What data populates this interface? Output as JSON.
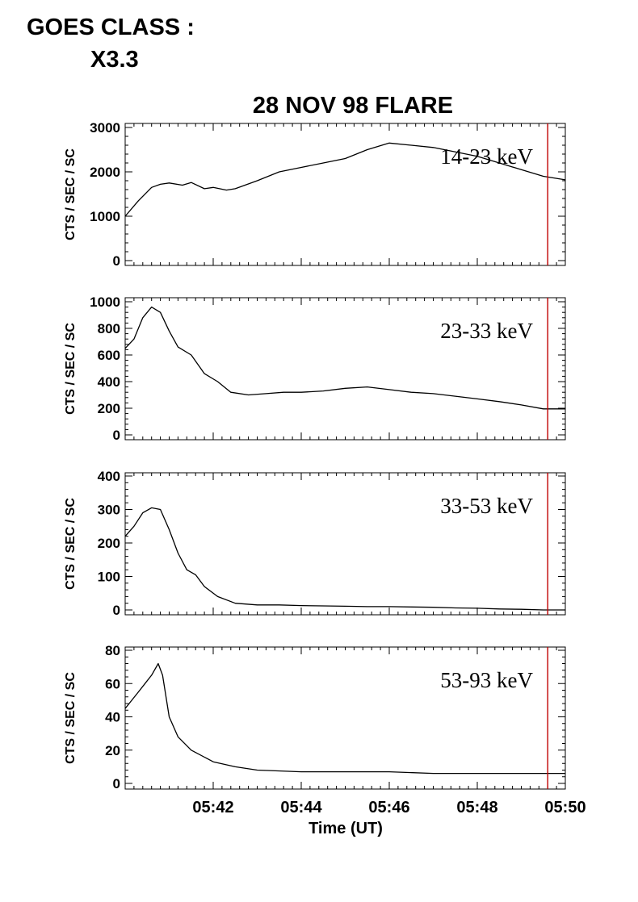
{
  "header": {
    "goes_label": "GOES CLASS :",
    "goes_value": "X3.3"
  },
  "colors": {
    "line": "#000000",
    "marker": "#c00000"
  },
  "chart_data": {
    "type": "line",
    "title": "28 NOV 98 FLARE",
    "xlabel": "Time (UT)",
    "x_unit": "minutes (UT)",
    "xlim": [
      "05:40",
      "05:50"
    ],
    "xticks": [
      "05:42",
      "05:44",
      "05:46",
      "05:48",
      "05:50"
    ],
    "marker_time": "05:49.6",
    "panels": [
      {
        "band": "14-23 keV",
        "ylabel": "CTS / SEC / SC",
        "ylim": [
          0,
          3000
        ],
        "yticks": [
          0,
          1000,
          2000,
          3000
        ],
        "points": [
          [
            "05:40.0",
            1000
          ],
          [
            "05:40.3",
            1350
          ],
          [
            "05:40.6",
            1650
          ],
          [
            "05:40.8",
            1720
          ],
          [
            "05:41.0",
            1750
          ],
          [
            "05:41.3",
            1700
          ],
          [
            "05:41.5",
            1760
          ],
          [
            "05:41.8",
            1620
          ],
          [
            "05:42.0",
            1650
          ],
          [
            "05:42.3",
            1590
          ],
          [
            "05:42.5",
            1620
          ],
          [
            "05:43.0",
            1800
          ],
          [
            "05:43.5",
            2000
          ],
          [
            "05:44.0",
            2100
          ],
          [
            "05:44.5",
            2200
          ],
          [
            "05:45.0",
            2300
          ],
          [
            "05:45.5",
            2500
          ],
          [
            "05:46.0",
            2650
          ],
          [
            "05:46.5",
            2600
          ],
          [
            "05:47.0",
            2550
          ],
          [
            "05:47.5",
            2450
          ],
          [
            "05:48.0",
            2350
          ],
          [
            "05:48.5",
            2200
          ],
          [
            "05:49.0",
            2050
          ],
          [
            "05:49.5",
            1900
          ],
          [
            "05:50.0",
            1820
          ]
        ]
      },
      {
        "band": "23-33 keV",
        "ylabel": "CTS / SEC / SC",
        "ylim": [
          0,
          1000
        ],
        "yticks": [
          0,
          200,
          400,
          600,
          800,
          1000
        ],
        "points": [
          [
            "05:40.0",
            650
          ],
          [
            "05:40.2",
            720
          ],
          [
            "05:40.4",
            880
          ],
          [
            "05:40.6",
            960
          ],
          [
            "05:40.8",
            920
          ],
          [
            "05:41.0",
            780
          ],
          [
            "05:41.2",
            660
          ],
          [
            "05:41.5",
            600
          ],
          [
            "05:41.8",
            460
          ],
          [
            "05:42.1",
            400
          ],
          [
            "05:42.4",
            320
          ],
          [
            "05:42.8",
            300
          ],
          [
            "05:43.2",
            310
          ],
          [
            "05:43.6",
            320
          ],
          [
            "05:44.0",
            320
          ],
          [
            "05:44.5",
            330
          ],
          [
            "05:45.0",
            350
          ],
          [
            "05:45.5",
            360
          ],
          [
            "05:46.0",
            340
          ],
          [
            "05:46.5",
            320
          ],
          [
            "05:47.0",
            310
          ],
          [
            "05:47.5",
            290
          ],
          [
            "05:48.0",
            270
          ],
          [
            "05:48.5",
            250
          ],
          [
            "05:49.0",
            225
          ],
          [
            "05:49.5",
            195
          ],
          [
            "05:50.0",
            195
          ]
        ]
      },
      {
        "band": "33-53 keV",
        "ylabel": "CTS / SEC / SC",
        "ylim": [
          0,
          400
        ],
        "yticks": [
          0,
          100,
          200,
          300,
          400
        ],
        "points": [
          [
            "05:40.0",
            220
          ],
          [
            "05:40.2",
            250
          ],
          [
            "05:40.4",
            290
          ],
          [
            "05:40.6",
            305
          ],
          [
            "05:40.8",
            300
          ],
          [
            "05:41.0",
            240
          ],
          [
            "05:41.2",
            170
          ],
          [
            "05:41.4",
            120
          ],
          [
            "05:41.6",
            105
          ],
          [
            "05:41.8",
            70
          ],
          [
            "05:42.1",
            40
          ],
          [
            "05:42.5",
            20
          ],
          [
            "05:43.0",
            15
          ],
          [
            "05:43.5",
            15
          ],
          [
            "05:44.0",
            13
          ],
          [
            "05:44.5",
            12
          ],
          [
            "05:45.0",
            11
          ],
          [
            "05:45.5",
            10
          ],
          [
            "05:46.0",
            10
          ],
          [
            "05:46.5",
            9
          ],
          [
            "05:47.0",
            8
          ],
          [
            "05:47.5",
            6
          ],
          [
            "05:48.0",
            5
          ],
          [
            "05:48.5",
            3
          ],
          [
            "05:49.0",
            2
          ],
          [
            "05:49.5",
            0
          ],
          [
            "05:50.0",
            0
          ]
        ]
      },
      {
        "band": "53-93 keV",
        "ylabel": "CTS / SEC / SC",
        "ylim": [
          0,
          80
        ],
        "yticks": [
          0,
          20,
          40,
          60,
          80
        ],
        "points": [
          [
            "05:40.0",
            45
          ],
          [
            "05:40.15",
            50
          ],
          [
            "05:40.3",
            55
          ],
          [
            "05:40.45",
            60
          ],
          [
            "05:40.6",
            65
          ],
          [
            "05:40.75",
            72
          ],
          [
            "05:40.85",
            65
          ],
          [
            "05:41.0",
            40
          ],
          [
            "05:41.2",
            28
          ],
          [
            "05:41.5",
            20
          ],
          [
            "05:42.0",
            13
          ],
          [
            "05:42.5",
            10
          ],
          [
            "05:43.0",
            8
          ],
          [
            "05:44.0",
            7
          ],
          [
            "05:45.0",
            7
          ],
          [
            "05:46.0",
            7
          ],
          [
            "05:47.0",
            6
          ],
          [
            "05:48.0",
            6
          ],
          [
            "05:49.0",
            6
          ],
          [
            "05:49.6",
            6
          ],
          [
            "05:50.0",
            6
          ]
        ]
      }
    ]
  }
}
